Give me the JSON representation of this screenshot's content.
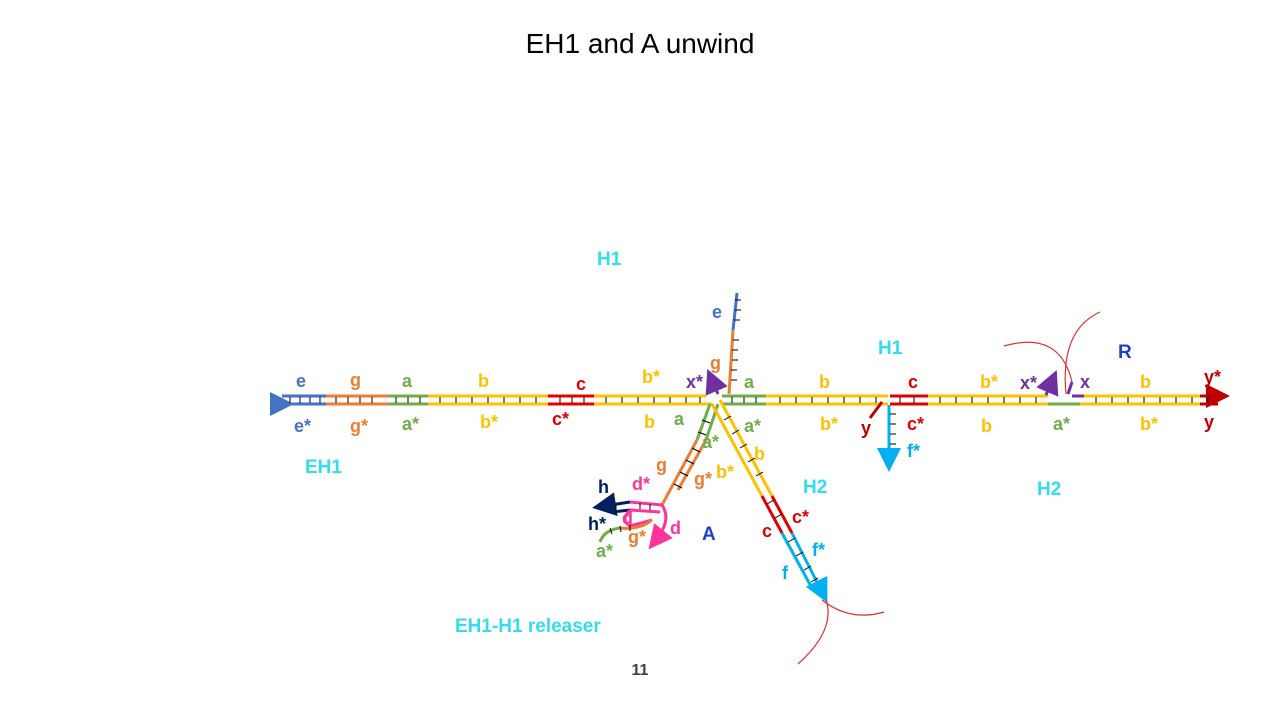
{
  "title": "EH1 and A unwind",
  "page_number": "11",
  "colors": {
    "e": "#4472c4",
    "g": "#ed7d31",
    "a": "#70ad47",
    "b": "#ffc000",
    "c": "#e00000",
    "x": "#7030a0",
    "y": "#c00000",
    "f": "#00b0f0",
    "d": "#ff3399",
    "h": "#002060",
    "H": "#33ddee",
    "A": "#1f3fd0",
    "loop": "#e03030"
  },
  "components": {
    "H1_top": "H1",
    "H1_right": "H1",
    "EH1": "EH1",
    "H2_mid": "H2",
    "H2_right": "H2",
    "A": "A",
    "R": "R",
    "releaser": "EH1-H1 releaser"
  },
  "domains": {
    "top": {
      "e": "e",
      "g": "g",
      "a": "a",
      "b": "b",
      "c": "c",
      "b_star": "b*",
      "x_star": "x*",
      "a2": "a",
      "b2": "b",
      "c2": "c",
      "b_star2": "b*",
      "x_star2": "x*",
      "x": "x",
      "b3": "b",
      "y_star": "y*"
    },
    "bottom": {
      "e_star": "e*",
      "g_star": "g*",
      "a_star": "a*",
      "b_star": "b*",
      "c_star": "c*",
      "b": "b",
      "a_star2": "a*",
      "b_star2": "b*",
      "y": "y",
      "c_star2": "c*",
      "b2": "b",
      "a_star3": "a*",
      "b_star3": "b*",
      "y2": "y",
      "f_star": "f*"
    },
    "up_strand": {
      "e": "e",
      "g": "g"
    },
    "arm_left": {
      "a": "a",
      "g": "g",
      "a_star": "a*",
      "g_star": "g*",
      "b_star": "b*"
    },
    "arm_right": {
      "b": "b",
      "c": "c",
      "c_star": "c*",
      "f_star": "f*",
      "f": "f"
    },
    "hairpin": {
      "h": "h",
      "h_star": "h*",
      "d_star": "d*",
      "d": "d",
      "d2": "d",
      "g_star": "g*",
      "a_star": "a*"
    }
  }
}
